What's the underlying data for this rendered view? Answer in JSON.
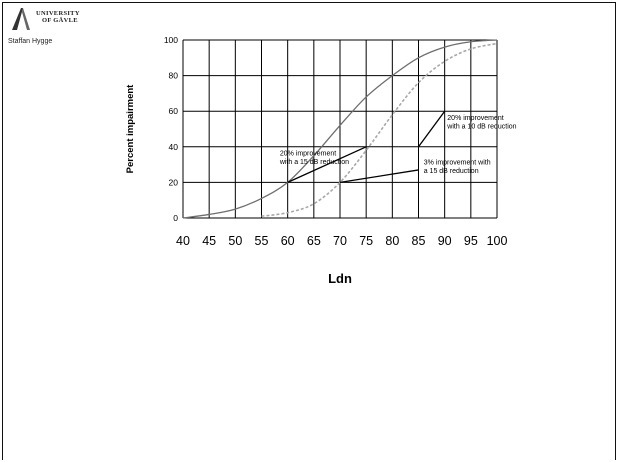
{
  "header": {
    "logo_line1": "UNIVERSITY",
    "logo_line2": "OF GÄVLE",
    "author": "Staffan Hygge"
  },
  "chart_data": {
    "type": "line",
    "title": "",
    "xlabel": "Ldn",
    "ylabel": "Percent impairment",
    "xlim": [
      40,
      100
    ],
    "ylim": [
      0,
      100
    ],
    "x_ticks": [
      40,
      45,
      50,
      55,
      60,
      65,
      70,
      75,
      80,
      85,
      90,
      95,
      100
    ],
    "y_ticks": [
      0,
      20,
      40,
      60,
      80,
      100
    ],
    "grid": true,
    "series": [
      {
        "style": "solid",
        "color": "#6e6e6e",
        "x": [
          40,
          45,
          50,
          55,
          60,
          65,
          70,
          75,
          80,
          85,
          90,
          95,
          100
        ],
        "y": [
          0,
          2,
          5,
          11,
          20,
          35,
          52,
          68,
          80,
          90,
          96,
          99,
          100
        ]
      },
      {
        "style": "dashed",
        "color": "#a8a8a8",
        "x": [
          55,
          60,
          65,
          70,
          75,
          80,
          85,
          90,
          95,
          100
        ],
        "y": [
          1,
          3,
          8,
          20,
          38,
          58,
          76,
          88,
          95,
          98
        ]
      }
    ],
    "annotation_lines": [
      {
        "x1": 60,
        "y1": 20,
        "x2": 75,
        "y2": 40
      },
      {
        "x1": 70,
        "y1": 20,
        "x2": 85,
        "y2": 27
      },
      {
        "x1": 85,
        "y1": 40,
        "x2": 90,
        "y2": 60
      }
    ],
    "annotations": [
      {
        "lines": [
          "20% improvement",
          "with a 15 dB reduction"
        ],
        "x": 58.5,
        "y": 35
      },
      {
        "lines": [
          "20% improvement",
          "with a 10 dB reduction"
        ],
        "x": 90.5,
        "y": 55
      },
      {
        "lines": [
          "3% improvement with",
          "a 15 dB reduction"
        ],
        "x": 86,
        "y": 30
      }
    ]
  }
}
